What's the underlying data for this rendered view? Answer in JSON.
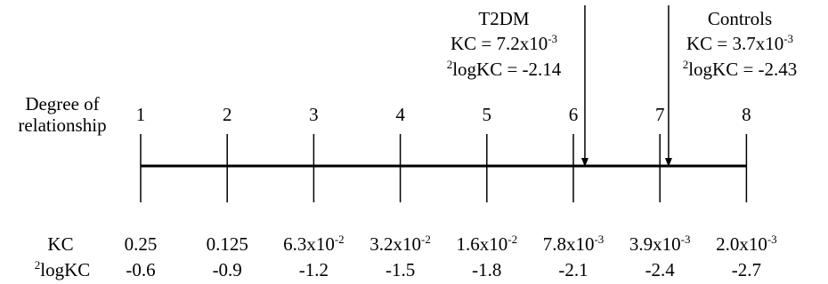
{
  "row_label": {
    "line1": "Degree of",
    "line2": "relationship"
  },
  "degrees": [
    "1",
    "2",
    "3",
    "4",
    "5",
    "6",
    "7",
    "8"
  ],
  "kc_label": "KC",
  "logkc_label": {
    "superscript": "2",
    "text": "logKC"
  },
  "kc_values": [
    {
      "mantissa": "0.25",
      "exponent": ""
    },
    {
      "mantissa": "0.125",
      "exponent": ""
    },
    {
      "mantissa": "6.3x10",
      "exponent": "-2"
    },
    {
      "mantissa": "3.2x10",
      "exponent": "-2"
    },
    {
      "mantissa": "1.6x10",
      "exponent": "-2"
    },
    {
      "mantissa": "7.8x10",
      "exponent": "-3"
    },
    {
      "mantissa": "3.9x10",
      "exponent": "-3"
    },
    {
      "mantissa": "2.0x10",
      "exponent": "-3"
    }
  ],
  "logkc_values": [
    "-0.6",
    "-0.9",
    "-1.2",
    "-1.5",
    "-1.8",
    "-2.1",
    "-2.4",
    "-2.7"
  ],
  "markers": [
    {
      "title": "T2DM",
      "kc_mantissa": "KC = 7.2x10",
      "kc_exponent": "-3",
      "logkc_superscript": "2",
      "logkc_text": "logKC = -2.14",
      "logkc_value": -2.14
    },
    {
      "title": "Controls",
      "kc_mantissa": "KC = 3.7x10",
      "kc_exponent": "-3",
      "logkc_superscript": "2",
      "logkc_text": "logKC = -2.43",
      "logkc_value": -2.43
    }
  ]
}
